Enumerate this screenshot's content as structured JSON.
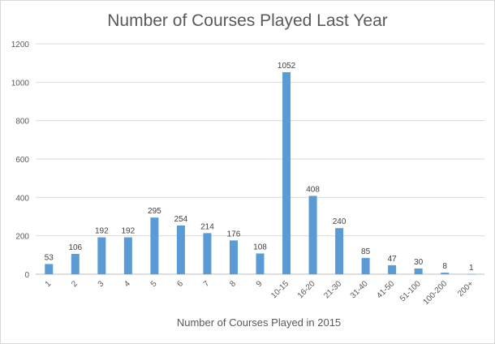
{
  "chart_data": {
    "type": "bar",
    "title": "Number of Courses Played Last Year",
    "xlabel": "Number  of Courses Played in 2015",
    "ylabel": "",
    "ylim": [
      0,
      1200
    ],
    "yticks": [
      0,
      200,
      400,
      600,
      800,
      1000,
      1200
    ],
    "grid": true,
    "legend": "none",
    "bar_color": "#5b9bd5",
    "categories": [
      "1",
      "2",
      "3",
      "4",
      "5",
      "6",
      "7",
      "8",
      "9",
      "10-15",
      "16-20",
      "21-30",
      "31-40",
      "41-50",
      "51-100",
      "100-200",
      "200+"
    ],
    "values": [
      53,
      106,
      192,
      192,
      295,
      254,
      214,
      176,
      108,
      1052,
      408,
      240,
      85,
      47,
      30,
      8,
      1
    ]
  }
}
